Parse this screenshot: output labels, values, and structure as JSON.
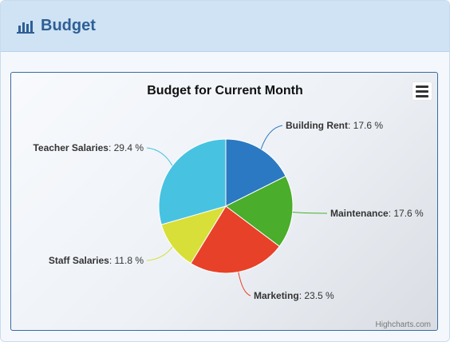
{
  "header": {
    "title": "Budget",
    "icon": "bar-chart-icon"
  },
  "chart_menu": {
    "icon": "hamburger-menu-icon"
  },
  "credits": "Highcharts.com",
  "colors": {
    "header_bg": "#cfe3f4",
    "title_blue": "#2f5f95",
    "frame_border": "#3b6aa0"
  },
  "chart_data": {
    "type": "pie",
    "title": "Budget for Current Month",
    "unit": "%",
    "slices": [
      {
        "name": "Building Rent",
        "value": 17.6,
        "label": "17.6 %",
        "color": "#2b79c2"
      },
      {
        "name": "Maintenance",
        "value": 17.6,
        "label": "17.6 %",
        "color": "#4aad2b"
      },
      {
        "name": "Marketing",
        "value": 23.5,
        "label": "23.5 %",
        "color": "#e74129"
      },
      {
        "name": "Staff Salaries",
        "value": 11.8,
        "label": "11.8 %",
        "color": "#d8df38"
      },
      {
        "name": "Teacher Salaries",
        "value": 29.4,
        "label": "29.4 %",
        "color": "#48c2e1"
      }
    ]
  }
}
